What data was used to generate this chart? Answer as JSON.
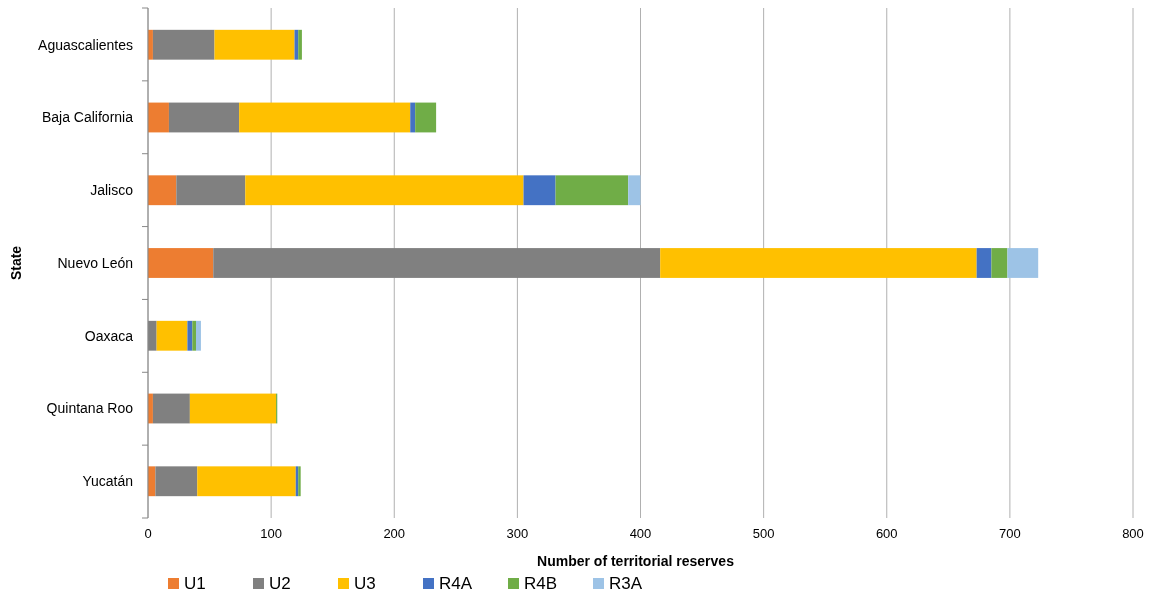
{
  "chart_data": {
    "type": "bar",
    "orientation": "horizontal",
    "stacked": true,
    "xlabel": "Number of territorial reserves",
    "ylabel": "State",
    "categories": [
      "Aguascalientes",
      "Baja California",
      "Jalisco",
      "Nuevo León",
      "Oaxaca",
      "Quintana Roo",
      "Yucatán"
    ],
    "series": [
      {
        "name": "U1",
        "color": "#ed7d31",
        "values": [
          4,
          17,
          23,
          53,
          0,
          4,
          6
        ]
      },
      {
        "name": "U2",
        "color": "#808080",
        "values": [
          50,
          57,
          56,
          363,
          7,
          30,
          34
        ]
      },
      {
        "name": "U3",
        "color": "#ffc000",
        "values": [
          65,
          139,
          226,
          257,
          25,
          70,
          80
        ]
      },
      {
        "name": "R4A",
        "color": "#4472c4",
        "values": [
          3,
          4,
          26,
          12,
          4,
          0,
          2
        ]
      },
      {
        "name": "R4B",
        "color": "#70ad47",
        "values": [
          3,
          17,
          59,
          13,
          3,
          1,
          2
        ]
      },
      {
        "name": "R3A",
        "color": "#9dc3e6",
        "values": [
          0,
          0,
          10,
          25,
          4,
          0,
          0
        ]
      }
    ],
    "xlim": [
      0,
      800
    ],
    "xticks": [
      0,
      100,
      200,
      300,
      400,
      500,
      600,
      700,
      800
    ],
    "grid": "x",
    "legend": "bottom"
  }
}
